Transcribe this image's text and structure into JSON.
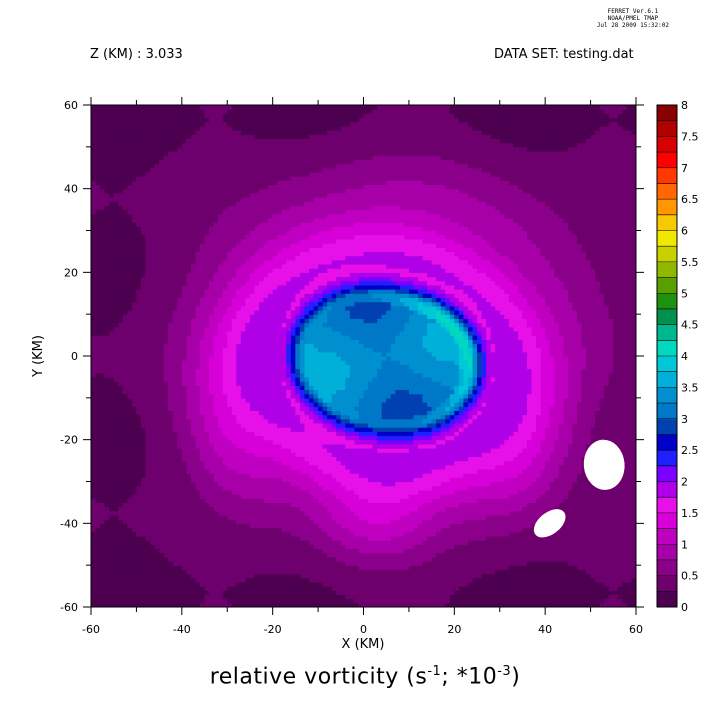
{
  "header": {
    "stamp_line1": "FERRET  Ver.6.1",
    "stamp_line2": "NOAA/PMEL TMAP",
    "stamp_line3": "Jul 28 2009 15:32:02",
    "z_label": "Z (KM) : 3.033",
    "dataset_label": "DATA SET: testing.dat"
  },
  "chart_data": {
    "type": "heatmap",
    "title_main": "relative vorticity (s",
    "title_exp1": "-1",
    "title_mid": "; *10",
    "title_exp2": "-3",
    "title_end": ")",
    "xlabel": "X (KM)",
    "ylabel": "Y (KM)",
    "xlim": [
      -60,
      60
    ],
    "ylim": [
      -60,
      60
    ],
    "xticks": [
      -60,
      -40,
      -20,
      0,
      20,
      40,
      60
    ],
    "yticks": [
      -60,
      -40,
      -20,
      0,
      20,
      40,
      60
    ],
    "colorbar": {
      "levels": [
        0,
        0.25,
        0.5,
        0.75,
        1,
        1.25,
        1.5,
        1.75,
        2,
        2.25,
        2.5,
        2.75,
        3,
        3.25,
        3.5,
        3.75,
        4,
        4.25,
        4.5,
        4.75,
        5,
        5.25,
        5.5,
        5.75,
        6,
        6.25,
        6.5,
        6.75,
        7,
        7.25,
        7.5,
        7.75,
        8
      ],
      "labels": [
        "0",
        "0.5",
        "1",
        "1.5",
        "2",
        "2.5",
        "3",
        "3.5",
        "4",
        "4.5",
        "5",
        "5.5",
        "6",
        "6.5",
        "7",
        "7.5",
        "8"
      ],
      "colors": [
        "#4d0050",
        "#6e006e",
        "#8a008a",
        "#a800a8",
        "#c000c0",
        "#d800d8",
        "#e810e8",
        "#b000e8",
        "#7a00ff",
        "#2020ff",
        "#0000c8",
        "#0040b0",
        "#0078c8",
        "#0090d0",
        "#00b0d8",
        "#00c8d8",
        "#00d8c0",
        "#00b890",
        "#009050",
        "#209010",
        "#58a000",
        "#90b800",
        "#c8d000",
        "#f0e800",
        "#f8c800",
        "#ff9800",
        "#ff6800",
        "#ff3800",
        "#ff0000",
        "#d80000",
        "#b00000",
        "#880000"
      ]
    },
    "structure": {
      "core_center_km": [
        5,
        0
      ],
      "core_peak_value": 4.0,
      "core_mean_value": 3.25,
      "ring_peak_value": 1.5,
      "background_value": 0.25,
      "missing_patches_km": [
        [
          53,
          -26
        ],
        [
          41,
          -40
        ]
      ]
    }
  }
}
